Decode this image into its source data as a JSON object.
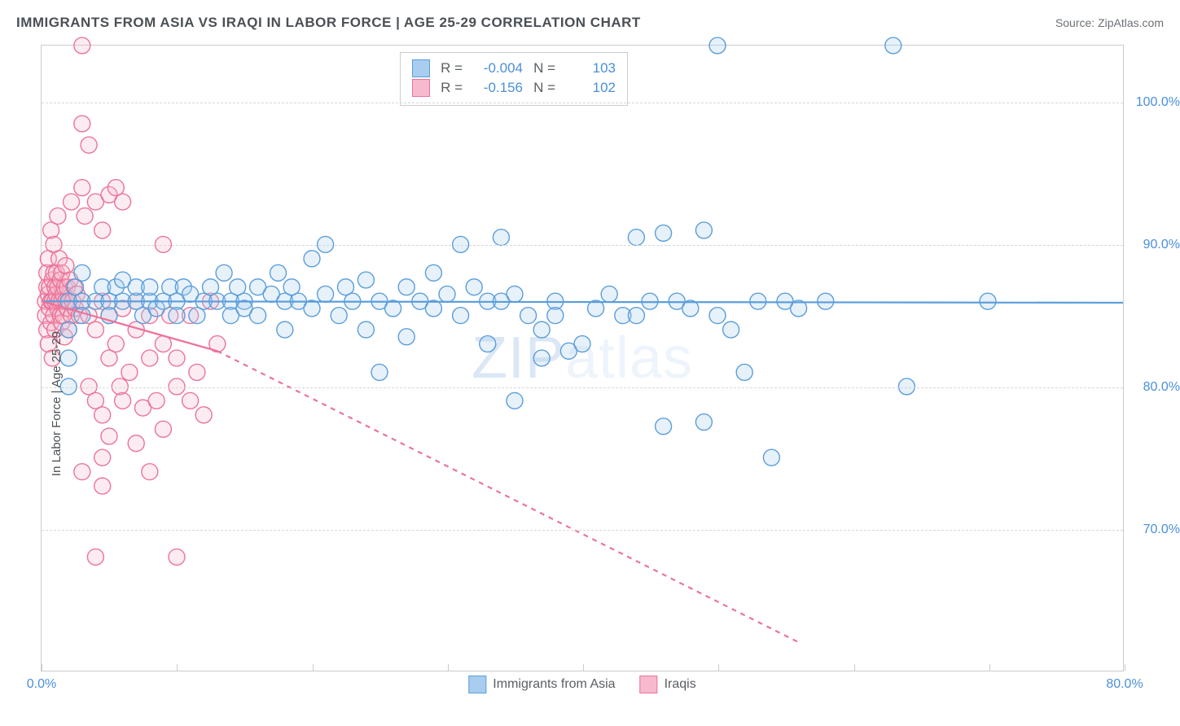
{
  "title": "IMMIGRANTS FROM ASIA VS IRAQI IN LABOR FORCE | AGE 25-29 CORRELATION CHART",
  "source": "Source: ZipAtlas.com",
  "watermark_main": "ZIP",
  "watermark_sub": "atlas",
  "y_axis_label": "In Labor Force | Age 25-29",
  "chart": {
    "type": "scatter",
    "background_color": "#ffffff",
    "frame_color": "#c9ccce",
    "grid_color": "#d5d7d9",
    "tick_text_color": "#4a90d9",
    "axis_label_color": "#4a5055",
    "title_fontsize": 17,
    "tick_fontsize": 16,
    "label_fontsize": 15,
    "xlim": [
      0,
      80
    ],
    "ylim": [
      60,
      104
    ],
    "x_ticks": [
      0,
      10,
      20,
      30,
      40,
      50,
      60,
      70,
      80
    ],
    "x_tick_labels": {
      "0": "0.0%",
      "80": "80.0%"
    },
    "y_ticks": [
      70,
      80,
      90,
      100
    ],
    "y_tick_labels": {
      "70": "70.0%",
      "80": "80.0%",
      "90": "90.0%",
      "100": "100.0%"
    },
    "marker_radius": 10,
    "marker_fill_opacity": 0.28,
    "marker_stroke_width": 1.4,
    "trend_line_width": 2.2
  },
  "series": {
    "asia": {
      "label": "Immigrants from Asia",
      "color": "#5a9edb",
      "fill": "#a8cdee",
      "R": "-0.004",
      "N": "103",
      "trend": {
        "x1": 0,
        "y1": 86.0,
        "x2": 80,
        "y2": 85.9,
        "extrapolate_dashed": false
      },
      "points": [
        [
          2,
          86
        ],
        [
          2,
          84
        ],
        [
          2,
          82
        ],
        [
          2,
          80
        ],
        [
          2.5,
          87
        ],
        [
          3,
          86
        ],
        [
          3,
          85
        ],
        [
          3,
          88
        ],
        [
          4,
          86
        ],
        [
          4.5,
          87
        ],
        [
          5,
          86
        ],
        [
          5,
          85
        ],
        [
          5.5,
          87
        ],
        [
          6,
          86
        ],
        [
          6,
          87.5
        ],
        [
          7,
          86
        ],
        [
          7,
          87
        ],
        [
          7.5,
          85
        ],
        [
          8,
          86
        ],
        [
          8,
          87
        ],
        [
          8.5,
          85.5
        ],
        [
          9,
          86
        ],
        [
          9.5,
          87
        ],
        [
          10,
          86
        ],
        [
          10,
          85
        ],
        [
          10.5,
          87
        ],
        [
          11,
          86.5
        ],
        [
          11.5,
          85
        ],
        [
          12,
          86
        ],
        [
          12.5,
          87
        ],
        [
          13,
          86
        ],
        [
          13.5,
          88
        ],
        [
          14,
          86
        ],
        [
          14,
          85
        ],
        [
          14.5,
          87
        ],
        [
          15,
          86
        ],
        [
          15,
          85.5
        ],
        [
          16,
          87
        ],
        [
          16,
          85
        ],
        [
          17,
          86.5
        ],
        [
          17.5,
          88
        ],
        [
          18,
          86
        ],
        [
          18,
          84
        ],
        [
          18.5,
          87
        ],
        [
          19,
          86
        ],
        [
          20,
          89
        ],
        [
          20,
          85.5
        ],
        [
          21,
          90
        ],
        [
          21,
          86.5
        ],
        [
          22,
          85
        ],
        [
          22.5,
          87
        ],
        [
          23,
          86
        ],
        [
          24,
          84
        ],
        [
          24,
          87.5
        ],
        [
          25,
          86
        ],
        [
          25,
          81
        ],
        [
          26,
          85.5
        ],
        [
          27,
          83.5
        ],
        [
          27,
          87
        ],
        [
          28,
          86
        ],
        [
          29,
          88
        ],
        [
          29,
          85.5
        ],
        [
          30,
          86.5
        ],
        [
          31,
          90
        ],
        [
          31,
          85
        ],
        [
          32,
          87
        ],
        [
          33,
          86
        ],
        [
          33,
          83
        ],
        [
          34,
          90.5
        ],
        [
          34,
          86
        ],
        [
          35,
          79
        ],
        [
          35,
          86.5
        ],
        [
          36,
          85
        ],
        [
          37,
          84
        ],
        [
          37,
          82
        ],
        [
          38,
          86
        ],
        [
          38,
          85
        ],
        [
          39,
          82.5
        ],
        [
          40,
          83
        ],
        [
          41,
          85.5
        ],
        [
          42,
          86.5
        ],
        [
          43,
          85
        ],
        [
          44,
          85
        ],
        [
          44,
          90.5
        ],
        [
          45,
          86
        ],
        [
          46,
          90.8
        ],
        [
          46,
          77.2
        ],
        [
          47,
          86
        ],
        [
          48,
          85.5
        ],
        [
          49,
          91
        ],
        [
          49,
          77.5
        ],
        [
          50,
          104
        ],
        [
          50,
          85
        ],
        [
          51,
          84
        ],
        [
          52,
          81
        ],
        [
          53,
          86
        ],
        [
          54,
          75
        ],
        [
          55,
          86
        ],
        [
          56,
          85.5
        ],
        [
          58,
          86
        ],
        [
          63,
          104
        ],
        [
          64,
          80
        ],
        [
          70,
          86
        ]
      ]
    },
    "iraqi": {
      "label": "Iraqis",
      "color": "#ec7399",
      "fill": "#f6b9cd",
      "R": "-0.156",
      "N": "102",
      "trend": {
        "x1": 0,
        "y1": 86.0,
        "x2": 13,
        "y2": 82.5,
        "extrapolate_to_x": 56,
        "extrapolate_to_y": 62
      },
      "points": [
        [
          0.3,
          86
        ],
        [
          0.3,
          85
        ],
        [
          0.4,
          87
        ],
        [
          0.4,
          84
        ],
        [
          0.4,
          88
        ],
        [
          0.5,
          86.5
        ],
        [
          0.5,
          89
        ],
        [
          0.5,
          83
        ],
        [
          0.6,
          87
        ],
        [
          0.6,
          85.5
        ],
        [
          0.7,
          86
        ],
        [
          0.7,
          91
        ],
        [
          0.7,
          84.5
        ],
        [
          0.8,
          87.5
        ],
        [
          0.8,
          86
        ],
        [
          0.8,
          82
        ],
        [
          0.9,
          88
        ],
        [
          0.9,
          85
        ],
        [
          0.9,
          90
        ],
        [
          1,
          86
        ],
        [
          1,
          87
        ],
        [
          1,
          84
        ],
        [
          1.1,
          86.5
        ],
        [
          1.1,
          88
        ],
        [
          1.2,
          85.5
        ],
        [
          1.2,
          87
        ],
        [
          1.3,
          86
        ],
        [
          1.3,
          89
        ],
        [
          1.4,
          85
        ],
        [
          1.4,
          87.5
        ],
        [
          1.5,
          86
        ],
        [
          1.5,
          84.5
        ],
        [
          1.5,
          88
        ],
        [
          1.6,
          86.5
        ],
        [
          1.6,
          85
        ],
        [
          1.7,
          87
        ],
        [
          1.7,
          83.5
        ],
        [
          1.8,
          86
        ],
        [
          1.8,
          88.5
        ],
        [
          1.9,
          85.5
        ],
        [
          1.9,
          87
        ],
        [
          2,
          86
        ],
        [
          2,
          84
        ],
        [
          2.1,
          87.5
        ],
        [
          2.2,
          85
        ],
        [
          2.3,
          86
        ],
        [
          2.4,
          87
        ],
        [
          2.5,
          85.5
        ],
        [
          2.6,
          86.5
        ],
        [
          2.8,
          85
        ],
        [
          3,
          104
        ],
        [
          3,
          86
        ],
        [
          3,
          98.5
        ],
        [
          3,
          74
        ],
        [
          3,
          94
        ],
        [
          3.5,
          97
        ],
        [
          3.5,
          85
        ],
        [
          3.5,
          80
        ],
        [
          4,
          93
        ],
        [
          4,
          84
        ],
        [
          4,
          79
        ],
        [
          4.5,
          91
        ],
        [
          4.5,
          86
        ],
        [
          4.5,
          78
        ],
        [
          4.5,
          75
        ],
        [
          5,
          93.5
        ],
        [
          5,
          85
        ],
        [
          5,
          82
        ],
        [
          5.5,
          94
        ],
        [
          5.5,
          83
        ],
        [
          5.8,
          80
        ],
        [
          6,
          93
        ],
        [
          6,
          85.5
        ],
        [
          6,
          79
        ],
        [
          6.5,
          81
        ],
        [
          7,
          86
        ],
        [
          7,
          84
        ],
        [
          7,
          76
        ],
        [
          7.5,
          78.5
        ],
        [
          8,
          82
        ],
        [
          8,
          85
        ],
        [
          8,
          74
        ],
        [
          8.5,
          79
        ],
        [
          9,
          90
        ],
        [
          9,
          83
        ],
        [
          9,
          77
        ],
        [
          9.5,
          85
        ],
        [
          10,
          68
        ],
        [
          10,
          82
        ],
        [
          10,
          80
        ],
        [
          11,
          79
        ],
        [
          11,
          85
        ],
        [
          11.5,
          81
        ],
        [
          12,
          78
        ],
        [
          12.5,
          86
        ],
        [
          13,
          83
        ],
        [
          4,
          68
        ],
        [
          4.5,
          73
        ],
        [
          5,
          76.5
        ],
        [
          3.2,
          92
        ],
        [
          2.2,
          93
        ],
        [
          1.2,
          92
        ]
      ]
    }
  },
  "legend": {
    "stats_label_R": "R =",
    "stats_label_N": "N ="
  }
}
